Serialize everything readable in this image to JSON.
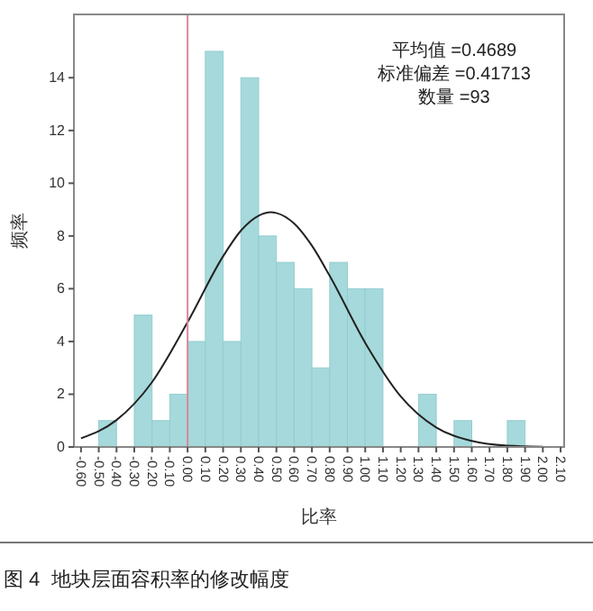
{
  "chart_data": {
    "type": "histogram",
    "title": "图 4  地块层面容积率的修改幅度",
    "xlabel": "比率",
    "ylabel": "频率",
    "annotations": [
      "平均值 =0.4689",
      "标准偏差 =0.41713",
      "数量 =93"
    ],
    "series": [
      {
        "color": "#a6d9db",
        "bins": [
          -0.6,
          -0.5,
          -0.4,
          -0.3,
          -0.2,
          -0.1,
          0,
          0.1,
          0.2,
          0.3,
          0.4,
          0.5,
          0.6,
          0.7,
          0.8,
          0.9,
          1.0,
          1.1,
          1.2,
          1.3,
          1.4,
          1.5,
          1.6,
          1.7,
          1.8,
          1.9,
          2.0,
          2.1
        ],
        "values": [
          0,
          1,
          0,
          5,
          1,
          2,
          4,
          15,
          4,
          14,
          8,
          7,
          6,
          3,
          7,
          6,
          6,
          0,
          0,
          2,
          0,
          1,
          0,
          0,
          1,
          0,
          0
        ]
      },
      {
        "type": "line",
        "color": "#222222",
        "x": [
          -0.6,
          -0.4,
          -0.2,
          0,
          0.2,
          0.3,
          0.4,
          0.4689,
          0.5,
          0.6,
          0.7,
          0.8,
          1.0,
          1.2,
          1.4,
          1.6,
          1.8,
          2.0
        ],
        "values": [
          0.33,
          1.02,
          2.46,
          4.73,
          7.23,
          8.2,
          8.77,
          8.9,
          8.87,
          8.47,
          7.63,
          6.49,
          3.95,
          1.92,
          0.74,
          0.23,
          0.05,
          0.01
        ]
      }
    ],
    "ref_lines": [
      {
        "axis": "x",
        "value": 0,
        "color": "#d9879a"
      }
    ],
    "xlim": [
      -0.64,
      2.12
    ],
    "ylim": [
      0,
      16.4
    ],
    "xticks": [
      {
        "value": -0.6,
        "label": "-0.60"
      },
      {
        "value": -0.5,
        "label": "-0.50"
      },
      {
        "value": -0.4,
        "label": "-0.40"
      },
      {
        "value": -0.3,
        "label": "-0.30"
      },
      {
        "value": -0.2,
        "label": "-0.20"
      },
      {
        "value": -0.1,
        "label": "-0.10"
      },
      {
        "value": 0,
        "label": "0.00"
      },
      {
        "value": 0.1,
        "label": "0.10"
      },
      {
        "value": 0.2,
        "label": "0.20"
      },
      {
        "value": 0.3,
        "label": "0.30"
      },
      {
        "value": 0.4,
        "label": "0.40"
      },
      {
        "value": 0.5,
        "label": "0.50"
      },
      {
        "value": 0.6,
        "label": "0.60"
      },
      {
        "value": 0.7,
        "label": "0.70"
      },
      {
        "value": 0.8,
        "label": "0.80"
      },
      {
        "value": 0.9,
        "label": "0.90"
      },
      {
        "value": 1.0,
        "label": "1.00"
      },
      {
        "value": 1.1,
        "label": "1.10"
      },
      {
        "value": 1.2,
        "label": "1.20"
      },
      {
        "value": 1.3,
        "label": "1.30"
      },
      {
        "value": 1.4,
        "label": "1.40"
      },
      {
        "value": 1.5,
        "label": "1.50"
      },
      {
        "value": 1.6,
        "label": "1.60"
      },
      {
        "value": 1.7,
        "label": "1.70"
      },
      {
        "value": 1.8,
        "label": "1.80"
      },
      {
        "value": 1.9,
        "label": "1.90"
      },
      {
        "value": 2.0,
        "label": "2.00"
      },
      {
        "value": 2.1,
        "label": "2.10"
      }
    ],
    "yticks": [
      0,
      2,
      4,
      6,
      8,
      10,
      12,
      14
    ],
    "grid": false
  }
}
